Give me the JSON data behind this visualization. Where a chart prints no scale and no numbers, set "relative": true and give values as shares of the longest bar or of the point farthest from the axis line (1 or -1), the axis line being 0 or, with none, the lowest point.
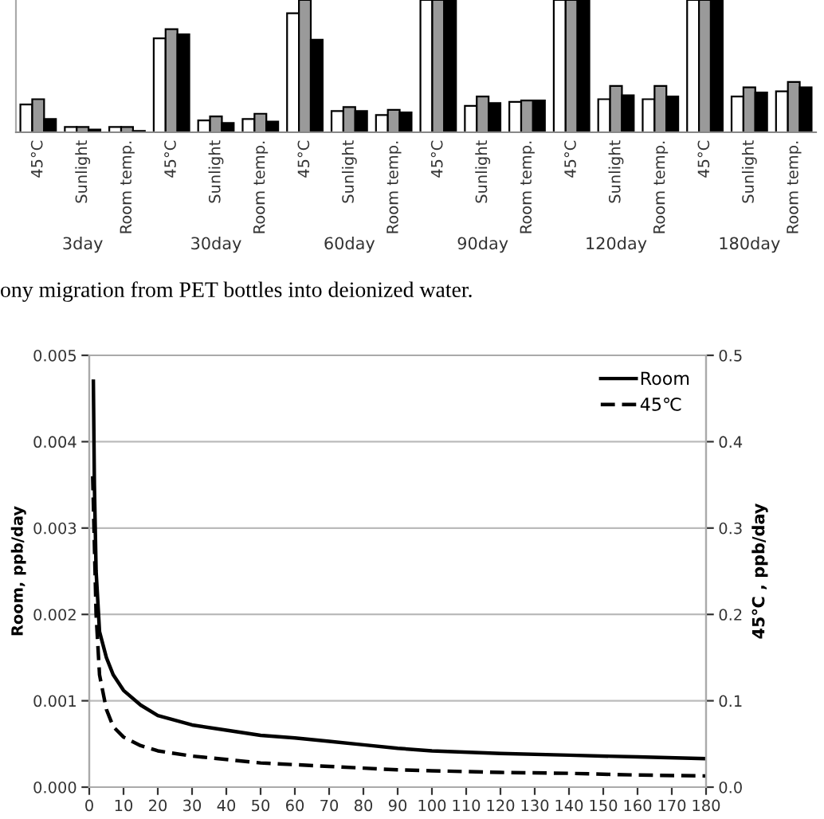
{
  "chart_data": [
    {
      "type": "bar",
      "relative": true,
      "categories": [
        "45°C",
        "Sunlight",
        "Room temp.",
        "45°C",
        "Sunlight",
        "Room temp.",
        "45°C",
        "Sunlight",
        "Room temp.",
        "45°C",
        "Sunlight",
        "Room temp.",
        "45°C",
        "Sunlight",
        "Room temp.",
        "45°C",
        "Sunlight",
        "Room temp."
      ],
      "series": [
        {
          "color": "#ffffff",
          "values": [
            0.21,
            0.04,
            0.04,
            0.71,
            0.09,
            0.1,
            0.9,
            0.16,
            0.13,
            1,
            0.2,
            0.23,
            1,
            0.25,
            0.25,
            1,
            0.27,
            0.31
          ]
        },
        {
          "color": "#9a9a9a",
          "values": [
            0.25,
            0.04,
            0.04,
            0.78,
            0.12,
            0.14,
            1,
            0.19,
            0.17,
            1,
            0.27,
            0.24,
            1,
            0.35,
            0.35,
            1,
            0.34,
            0.38
          ]
        },
        {
          "color": "#000000",
          "values": [
            0.1,
            0.02,
            0.01,
            0.74,
            0.07,
            0.08,
            0.7,
            0.16,
            0.15,
            1,
            0.22,
            0.24,
            1,
            0.28,
            0.27,
            1,
            0.3,
            0.34
          ]
        }
      ],
      "annotations": [
        "3day",
        "30day",
        "60day",
        "90day",
        "120day",
        "180day",
        "ony migration from PET bottles into deionized water."
      ]
    },
    {
      "type": "line",
      "ylabel": "Room, ppb/day",
      "y2label": "45℃ , ppb/day",
      "xlim": [
        0,
        180
      ],
      "xticks": [
        0,
        10,
        20,
        30,
        40,
        50,
        60,
        70,
        80,
        90,
        100,
        110,
        120,
        130,
        140,
        150,
        160,
        170,
        180
      ],
      "ylim": [
        0,
        0.005
      ],
      "yticks": [
        {
          "value": 0,
          "label": "0.000"
        },
        {
          "value": 0.001,
          "label": "0.001"
        },
        {
          "value": 0.002,
          "label": "0.002"
        },
        {
          "value": 0.003,
          "label": "0.003"
        },
        {
          "value": 0.004,
          "label": "0.004"
        },
        {
          "value": 0.005,
          "label": "0.005"
        }
      ],
      "y2lim": [
        0,
        0.5
      ],
      "y2ticks": [
        {
          "value": 0,
          "label": "0.0"
        },
        0.1,
        0.2,
        0.3,
        0.4,
        0.5
      ],
      "grid": "y",
      "legend": "top right",
      "series": [
        {
          "name": "Room",
          "color": "#000000",
          "line_style": "solid",
          "x": [
            1.2,
            1.5,
            2,
            3,
            5,
            7,
            10,
            15,
            20,
            30,
            40,
            50,
            60,
            70,
            80,
            90,
            100,
            120,
            140,
            160,
            180
          ],
          "values": [
            0.0047,
            0.0035,
            0.0025,
            0.0018,
            0.0015,
            0.0013,
            0.00112,
            0.00095,
            0.00083,
            0.00072,
            0.00066,
            0.0006,
            0.00057,
            0.00053,
            0.00049,
            0.00045,
            0.00042,
            0.00039,
            0.00037,
            0.00035,
            0.00033
          ]
        },
        {
          "name": "45℃",
          "color": "#000000",
          "line_style": "dashed",
          "axis": "y2",
          "x": [
            1,
            2,
            3,
            5,
            7,
            10,
            15,
            20,
            30,
            40,
            50,
            60,
            70,
            80,
            90,
            100,
            120,
            140,
            160,
            180
          ],
          "values": [
            0.36,
            0.2,
            0.13,
            0.09,
            0.07,
            0.058,
            0.048,
            0.042,
            0.036,
            0.032,
            0.028,
            0.026,
            0.024,
            0.022,
            0.02,
            0.019,
            0.017,
            0.016,
            0.014,
            0.013
          ]
        }
      ]
    }
  ]
}
